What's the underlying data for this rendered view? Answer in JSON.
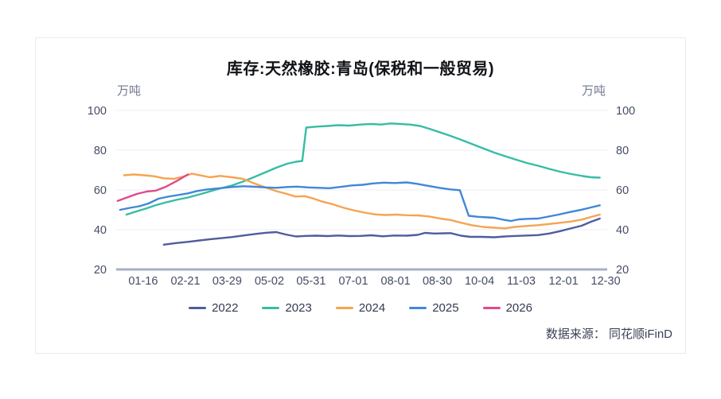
{
  "footer": {
    "source": "数据来源： 同花顺iFinD"
  },
  "chart_data": {
    "type": "line",
    "title": "库存:天然橡胶:青岛(保税和一般贸易)",
    "unit_left": "万吨",
    "unit_right": "万吨",
    "y_axis": {
      "min": 20,
      "max": 100,
      "ticks": [
        20,
        40,
        60,
        80,
        100
      ],
      "dual_axis": true
    },
    "x_labels": [
      {
        "label": "01-16",
        "pos": 0.055
      },
      {
        "label": "02-21",
        "pos": 0.141
      },
      {
        "label": "03-29",
        "pos": 0.226
      },
      {
        "label": "05-02",
        "pos": 0.312
      },
      {
        "label": "05-31",
        "pos": 0.397
      },
      {
        "label": "07-01",
        "pos": 0.483
      },
      {
        "label": "08-01",
        "pos": 0.569
      },
      {
        "label": "08-30",
        "pos": 0.654
      },
      {
        "label": "10-04",
        "pos": 0.74
      },
      {
        "label": "11-03",
        "pos": 0.825
      },
      {
        "label": "12-01",
        "pos": 0.911
      },
      {
        "label": "12-30",
        "pos": 0.997
      }
    ],
    "colors": {
      "grid": "#ededf5",
      "axis_line": "#a6b0c3",
      "tick_text": "#454c66"
    },
    "series": [
      {
        "name": "2022",
        "color": "#4f5d9e",
        "points": [
          [
            0.097,
            32.5
          ],
          [
            0.122,
            33.3
          ],
          [
            0.146,
            33.9
          ],
          [
            0.17,
            34.6
          ],
          [
            0.194,
            35.3
          ],
          [
            0.219,
            35.9
          ],
          [
            0.235,
            36.3
          ],
          [
            0.259,
            37.1
          ],
          [
            0.284,
            37.9
          ],
          [
            0.306,
            38.5
          ],
          [
            0.326,
            38.8
          ],
          [
            0.345,
            37.6
          ],
          [
            0.366,
            36.6
          ],
          [
            0.387,
            36.9
          ],
          [
            0.408,
            37.0
          ],
          [
            0.431,
            36.8
          ],
          [
            0.452,
            37.1
          ],
          [
            0.475,
            36.8
          ],
          [
            0.498,
            36.9
          ],
          [
            0.52,
            37.2
          ],
          [
            0.543,
            36.7
          ],
          [
            0.566,
            37.1
          ],
          [
            0.592,
            37.0
          ],
          [
            0.614,
            37.4
          ],
          [
            0.629,
            38.4
          ],
          [
            0.648,
            38.1
          ],
          [
            0.669,
            38.2
          ],
          [
            0.681,
            38.3
          ],
          [
            0.702,
            37.0
          ],
          [
            0.721,
            36.4
          ],
          [
            0.744,
            36.4
          ],
          [
            0.77,
            36.2
          ],
          [
            0.792,
            36.6
          ],
          [
            0.815,
            36.9
          ],
          [
            0.838,
            37.1
          ],
          [
            0.859,
            37.3
          ],
          [
            0.882,
            38.1
          ],
          [
            0.904,
            39.3
          ],
          [
            0.925,
            40.6
          ],
          [
            0.948,
            42.0
          ],
          [
            0.967,
            44.0
          ],
          [
            0.985,
            45.6
          ]
        ]
      },
      {
        "name": "2023",
        "color": "#36bda4",
        "points": [
          [
            0.021,
            47.6
          ],
          [
            0.041,
            49.2
          ],
          [
            0.06,
            50.6
          ],
          [
            0.079,
            52.2
          ],
          [
            0.099,
            53.6
          ],
          [
            0.122,
            55.0
          ],
          [
            0.146,
            56.2
          ],
          [
            0.167,
            57.6
          ],
          [
            0.19,
            59.2
          ],
          [
            0.212,
            60.8
          ],
          [
            0.235,
            62.2
          ],
          [
            0.258,
            64.2
          ],
          [
            0.28,
            66.4
          ],
          [
            0.303,
            68.8
          ],
          [
            0.326,
            71.2
          ],
          [
            0.348,
            73.2
          ],
          [
            0.366,
            74.2
          ],
          [
            0.379,
            74.6
          ],
          [
            0.387,
            91.4
          ],
          [
            0.408,
            91.9
          ],
          [
            0.431,
            92.2
          ],
          [
            0.452,
            92.6
          ],
          [
            0.475,
            92.4
          ],
          [
            0.498,
            92.9
          ],
          [
            0.519,
            93.2
          ],
          [
            0.54,
            92.9
          ],
          [
            0.559,
            93.5
          ],
          [
            0.579,
            93.2
          ],
          [
            0.598,
            92.9
          ],
          [
            0.619,
            92.2
          ],
          [
            0.64,
            90.6
          ],
          [
            0.661,
            88.9
          ],
          [
            0.681,
            87.2
          ],
          [
            0.703,
            85.2
          ],
          [
            0.726,
            83.0
          ],
          [
            0.749,
            80.8
          ],
          [
            0.77,
            78.8
          ],
          [
            0.792,
            77.0
          ],
          [
            0.815,
            75.2
          ],
          [
            0.836,
            73.6
          ],
          [
            0.859,
            72.2
          ],
          [
            0.882,
            70.6
          ],
          [
            0.904,
            69.2
          ],
          [
            0.927,
            68.0
          ],
          [
            0.95,
            67.0
          ],
          [
            0.967,
            66.4
          ],
          [
            0.985,
            66.2
          ]
        ]
      },
      {
        "name": "2024",
        "color": "#f5a44f",
        "points": [
          [
            0.016,
            67.4
          ],
          [
            0.036,
            67.8
          ],
          [
            0.057,
            67.4
          ],
          [
            0.078,
            66.9
          ],
          [
            0.097,
            65.9
          ],
          [
            0.117,
            65.6
          ],
          [
            0.136,
            66.7
          ],
          [
            0.154,
            68.2
          ],
          [
            0.173,
            67.3
          ],
          [
            0.191,
            66.4
          ],
          [
            0.212,
            67.1
          ],
          [
            0.235,
            66.4
          ],
          [
            0.258,
            65.6
          ],
          [
            0.28,
            63.4
          ],
          [
            0.303,
            61.4
          ],
          [
            0.326,
            59.4
          ],
          [
            0.345,
            58.2
          ],
          [
            0.365,
            56.7
          ],
          [
            0.384,
            56.9
          ],
          [
            0.4,
            55.8
          ],
          [
            0.418,
            54.3
          ],
          [
            0.441,
            52.8
          ],
          [
            0.464,
            51.0
          ],
          [
            0.486,
            49.6
          ],
          [
            0.506,
            48.6
          ],
          [
            0.528,
            47.7
          ],
          [
            0.549,
            47.4
          ],
          [
            0.571,
            47.6
          ],
          [
            0.592,
            47.3
          ],
          [
            0.614,
            47.2
          ],
          [
            0.637,
            46.7
          ],
          [
            0.66,
            45.6
          ],
          [
            0.681,
            44.9
          ],
          [
            0.703,
            43.5
          ],
          [
            0.724,
            42.3
          ],
          [
            0.747,
            41.4
          ],
          [
            0.77,
            41.0
          ],
          [
            0.791,
            40.7
          ],
          [
            0.812,
            41.4
          ],
          [
            0.835,
            41.9
          ],
          [
            0.859,
            42.3
          ],
          [
            0.882,
            42.9
          ],
          [
            0.904,
            43.5
          ],
          [
            0.925,
            44.1
          ],
          [
            0.948,
            45.1
          ],
          [
            0.967,
            46.4
          ],
          [
            0.985,
            47.6
          ]
        ]
      },
      {
        "name": "2025",
        "color": "#4187d7",
        "points": [
          [
            0.008,
            50.0
          ],
          [
            0.028,
            51.0
          ],
          [
            0.047,
            51.8
          ],
          [
            0.066,
            53.2
          ],
          [
            0.086,
            55.6
          ],
          [
            0.105,
            56.6
          ],
          [
            0.125,
            57.4
          ],
          [
            0.146,
            58.3
          ],
          [
            0.165,
            59.5
          ],
          [
            0.186,
            60.3
          ],
          [
            0.211,
            60.9
          ],
          [
            0.235,
            61.5
          ],
          [
            0.259,
            61.9
          ],
          [
            0.284,
            61.6
          ],
          [
            0.305,
            61.3
          ],
          [
            0.326,
            61.1
          ],
          [
            0.347,
            61.5
          ],
          [
            0.368,
            61.7
          ],
          [
            0.391,
            61.3
          ],
          [
            0.413,
            61.1
          ],
          [
            0.434,
            60.9
          ],
          [
            0.455,
            61.5
          ],
          [
            0.48,
            62.3
          ],
          [
            0.502,
            62.6
          ],
          [
            0.523,
            63.3
          ],
          [
            0.545,
            63.7
          ],
          [
            0.567,
            63.5
          ],
          [
            0.592,
            63.8
          ],
          [
            0.613,
            63.1
          ],
          [
            0.635,
            62.1
          ],
          [
            0.658,
            61.1
          ],
          [
            0.681,
            60.3
          ],
          [
            0.7,
            59.9
          ],
          [
            0.718,
            47.0
          ],
          [
            0.737,
            46.5
          ],
          [
            0.757,
            46.2
          ],
          [
            0.77,
            46.0
          ],
          [
            0.789,
            45.0
          ],
          [
            0.804,
            44.4
          ],
          [
            0.82,
            45.2
          ],
          [
            0.839,
            45.5
          ],
          [
            0.859,
            45.6
          ],
          [
            0.88,
            46.6
          ],
          [
            0.901,
            47.6
          ],
          [
            0.924,
            48.9
          ],
          [
            0.948,
            50.1
          ],
          [
            0.967,
            51.2
          ],
          [
            0.985,
            52.3
          ]
        ]
      },
      {
        "name": "2026",
        "color": "#e04a8c",
        "points": [
          [
            0.003,
            54.5
          ],
          [
            0.023,
            56.3
          ],
          [
            0.042,
            58.0
          ],
          [
            0.062,
            59.2
          ],
          [
            0.081,
            59.7
          ],
          [
            0.1,
            61.5
          ],
          [
            0.123,
            64.5
          ],
          [
            0.146,
            67.8
          ]
        ]
      }
    ]
  }
}
